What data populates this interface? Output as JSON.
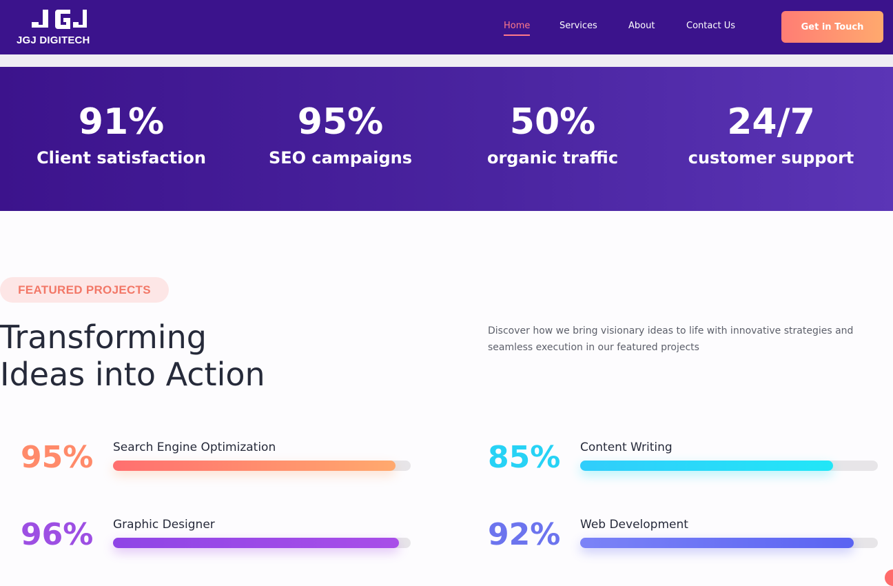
{
  "brand": {
    "logo_text": "JGJ DIGITECH",
    "logo_mark": "JGJ"
  },
  "nav": {
    "items": [
      {
        "label": "Home",
        "active": true
      },
      {
        "label": "Services",
        "active": false
      },
      {
        "label": "About",
        "active": false
      },
      {
        "label": "Contact Us",
        "active": false
      }
    ],
    "cta_label": "Get in Touch"
  },
  "stats": [
    {
      "value": "91%",
      "label": "Client satisfaction"
    },
    {
      "value": "95%",
      "label": "SEO campaigns"
    },
    {
      "value": "50%",
      "label": "organic traffic"
    },
    {
      "value": "24/7",
      "label": "customer support"
    }
  ],
  "featured": {
    "badge": "FEATURED PROJECTS",
    "heading_line1": "Transforming",
    "heading_line2": "Ideas into Action",
    "intro": "Discover how we bring visionary ideas to life with innovative strategies and seamless execution in our featured projects"
  },
  "skills": [
    {
      "percent": "95%",
      "name": "Search Engine Optimization",
      "level": 0.95,
      "colors": [
        "#ff6f6f",
        "#ffa96e"
      ],
      "text_color": "#ff8a6a"
    },
    {
      "percent": "85%",
      "name": "Content Writing",
      "level": 0.85,
      "colors": [
        "#31cdfb",
        "#22e6f7"
      ],
      "text_color": "#27d2f5"
    },
    {
      "percent": "96%",
      "name": "Graphic Designer",
      "level": 0.96,
      "colors": [
        "#8f45e6",
        "#a84ee8"
      ],
      "text_color": "#9d4fe3"
    },
    {
      "percent": "92%",
      "name": "Web Development",
      "level": 0.92,
      "colors": [
        "#7b83f7",
        "#5a63f2"
      ],
      "text_color": "#6c74ee"
    }
  ],
  "colors": {
    "header_bg": "#3b138c",
    "accent": "#ff7a8a",
    "heading": "#262a3a"
  }
}
